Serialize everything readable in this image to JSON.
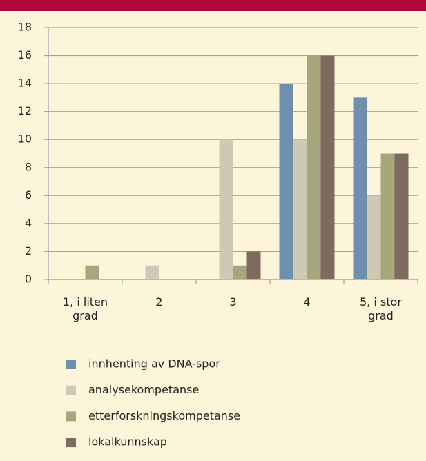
{
  "chart_data": {
    "type": "bar",
    "categories": [
      "1, i liten grad",
      "2",
      "3",
      "4",
      "5, i stor grad"
    ],
    "series": [
      {
        "name": "innhenting av DNA-spor",
        "color": "#6f8fae",
        "values": [
          0,
          0,
          0,
          14,
          13
        ]
      },
      {
        "name": "analysekompetanse",
        "color": "#cfc8b4",
        "values": [
          0,
          1,
          10,
          10,
          6
        ]
      },
      {
        "name": "etterforskningskompetanse",
        "color": "#a6a77c",
        "values": [
          1,
          0,
          1,
          16,
          9
        ]
      },
      {
        "name": "lokalkunnskap",
        "color": "#7d6b5e",
        "values": [
          0,
          0,
          2,
          16,
          9
        ]
      }
    ],
    "ylim": [
      0,
      18
    ],
    "yticks": [
      0,
      2,
      4,
      6,
      8,
      10,
      12,
      14,
      16,
      18
    ],
    "grid": true
  }
}
